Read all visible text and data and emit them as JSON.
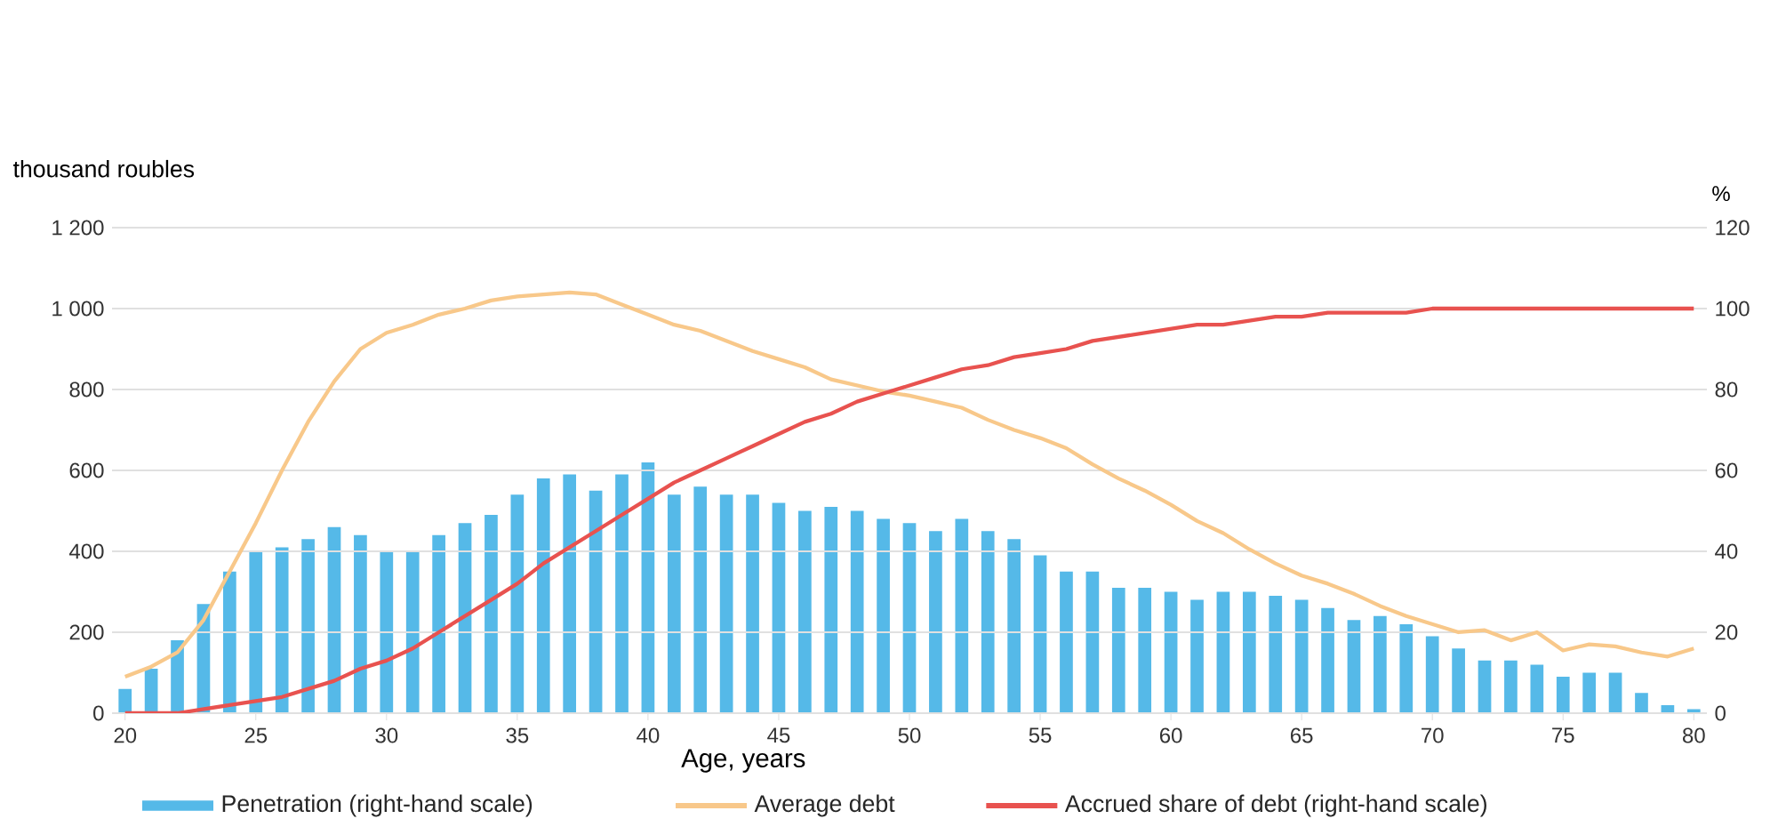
{
  "chart_data": {
    "type": "bar",
    "xlabel": "Age, years",
    "ylabel": "thousand roubles",
    "y2label": "%",
    "x": [
      20,
      21,
      22,
      23,
      24,
      25,
      26,
      27,
      28,
      29,
      30,
      31,
      32,
      33,
      34,
      35,
      36,
      37,
      38,
      39,
      40,
      41,
      42,
      43,
      44,
      45,
      46,
      47,
      48,
      49,
      50,
      51,
      52,
      53,
      54,
      55,
      56,
      57,
      58,
      59,
      60,
      61,
      62,
      63,
      64,
      65,
      66,
      67,
      68,
      69,
      70,
      71,
      72,
      73,
      74,
      75,
      76,
      77,
      78,
      79,
      80
    ],
    "series": [
      {
        "name": "Penetration (right-hand scale)",
        "axis": "y2",
        "color": "#55b9e8",
        "values": [
          6,
          11,
          18,
          27,
          35,
          40,
          41,
          43,
          46,
          44,
          40,
          40,
          44,
          47,
          49,
          54,
          58,
          59,
          55,
          59,
          62,
          54,
          56,
          54,
          54,
          52,
          50,
          51,
          50,
          48,
          47,
          45,
          48,
          45,
          43,
          39,
          35,
          35,
          31,
          31,
          30,
          28,
          30,
          30,
          29,
          28,
          26,
          23,
          24,
          22,
          19,
          16,
          13,
          13,
          12,
          9,
          10,
          10,
          5,
          2,
          1
        ]
      },
      {
        "name": "Average debt",
        "type": "line",
        "color": "#f8c88a",
        "values": [
          90,
          115,
          150,
          230,
          350,
          470,
          600,
          720,
          820,
          900,
          940,
          960,
          985,
          1000,
          1020,
          1030,
          1035,
          1040,
          1035,
          1010,
          985,
          960,
          945,
          920,
          895,
          875,
          855,
          825,
          810,
          795,
          785,
          770,
          755,
          725,
          700,
          680,
          655,
          615,
          580,
          550,
          515,
          475,
          445,
          405,
          370,
          340,
          320,
          295,
          265,
          240,
          220,
          200,
          205,
          180,
          200,
          155,
          170,
          165,
          150,
          140,
          160
        ]
      },
      {
        "name": "Accrued share of debt (right-hand scale)",
        "type": "line",
        "axis": "y2",
        "color": "#e8524f",
        "values": [
          0,
          0,
          0,
          1,
          2,
          3,
          4,
          6,
          8,
          11,
          13,
          16,
          20,
          24,
          28,
          32,
          37,
          41,
          45,
          49,
          53,
          57,
          60,
          63,
          66,
          69,
          72,
          74,
          77,
          79,
          81,
          83,
          85,
          86,
          88,
          89,
          90,
          92,
          93,
          94,
          95,
          96,
          96,
          97,
          98,
          98,
          99,
          99,
          99,
          99,
          100,
          100,
          100,
          100,
          100,
          100,
          100,
          100,
          100,
          100,
          100
        ]
      }
    ],
    "xlim": [
      19.5,
      80.5
    ],
    "xticks": [
      20,
      25,
      30,
      35,
      40,
      45,
      50,
      55,
      60,
      65,
      70,
      75,
      80
    ],
    "ylim": [
      0,
      1200
    ],
    "yticks": [
      0,
      200,
      400,
      600,
      800,
      {
        "value": 1000,
        "label": "1 000"
      },
      {
        "value": 1200,
        "label": "1 200"
      }
    ],
    "y2lim": [
      0,
      120
    ],
    "y2ticks": [
      0,
      20,
      40,
      60,
      80,
      100,
      120
    ],
    "grid": "y",
    "legend": "bottom",
    "line_style": "solid"
  }
}
